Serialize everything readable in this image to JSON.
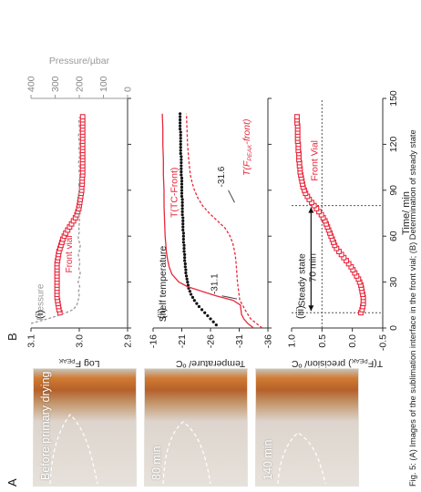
{
  "panels": {
    "a_label": "A",
    "b_label": "B",
    "photo_captions": [
      "Before primary drying",
      "80 min",
      "140 min"
    ],
    "caption": "Fig. 5: (A) Images of the sublimation interface in the front vial; (B) Determination of steady state"
  },
  "chart_data": [
    {
      "id": "i",
      "type": "line",
      "panel": "(i)",
      "xlim": [
        0,
        150
      ],
      "ylabel": "Log F",
      "ylabel_sub": "PEAK",
      "ylim": [
        2.9,
        3.1
      ],
      "yticks": [
        "3.1",
        "3.0",
        "2.9"
      ],
      "y2label": "Pressure/µbar",
      "y2lim": [
        0,
        400
      ],
      "y2ticks": [
        "0",
        "100",
        "200",
        "300",
        "400"
      ],
      "annotations": [
        "Pressure",
        "Front vial"
      ],
      "series": [
        {
          "name": "Front vial",
          "color": "#e8283c",
          "marker": "square",
          "x": [
            10,
            12,
            14,
            16,
            18,
            20,
            22,
            24,
            26,
            28,
            30,
            32,
            34,
            36,
            38,
            40,
            42,
            44,
            46,
            48,
            50,
            52,
            54,
            56,
            58,
            60,
            62,
            64,
            66,
            68,
            70,
            72,
            74,
            76,
            78,
            80,
            82,
            84,
            86,
            88,
            90,
            92,
            94,
            96,
            98,
            100,
            102,
            104,
            106,
            108,
            110,
            112,
            114,
            116,
            118,
            120,
            122,
            124,
            126,
            128,
            130,
            132,
            134,
            136,
            138
          ],
          "y": [
            3.04,
            3.042,
            3.043,
            3.044,
            3.045,
            3.046,
            3.046,
            3.046,
            3.046,
            3.046,
            3.046,
            3.046,
            3.046,
            3.046,
            3.046,
            3.046,
            3.046,
            3.045,
            3.044,
            3.043,
            3.042,
            3.04,
            3.038,
            3.036,
            3.034,
            3.031,
            3.028,
            3.024,
            3.02,
            3.016,
            3.012,
            3.008,
            3.005,
            3.003,
            3.001,
            3.0,
            2.999,
            2.998,
            2.997,
            2.996,
            2.995,
            2.995,
            2.994,
            2.994,
            2.994,
            2.993,
            2.993,
            2.993,
            2.993,
            2.993,
            2.993,
            2.993,
            2.993,
            2.993,
            2.993,
            2.993,
            2.993,
            2.993,
            2.993,
            2.993,
            2.993,
            2.993,
            2.993,
            2.993,
            2.993
          ]
        },
        {
          "name": "Pressure",
          "axis": "y2",
          "color": "#9a9a9a",
          "style": "dashed",
          "x": [
            3,
            6,
            9,
            12,
            15,
            18,
            21,
            24,
            27,
            30,
            33,
            36,
            39,
            42,
            45,
            48,
            51,
            54,
            57,
            60,
            63,
            66,
            69,
            72,
            75,
            78,
            81,
            84,
            87,
            90,
            93,
            96,
            99,
            102,
            105,
            108,
            111,
            114,
            117,
            120,
            123,
            126,
            129,
            132,
            135,
            138
          ],
          "y": [
            400,
            330,
            270,
            225,
            210,
            205,
            200,
            203,
            198,
            205,
            200,
            196,
            202,
            198,
            200,
            204,
            199,
            196,
            202,
            205,
            199,
            203,
            198,
            200,
            204,
            197,
            201,
            199,
            203,
            198,
            202,
            200,
            197,
            201,
            199,
            203,
            200,
            198,
            202,
            199,
            201,
            203,
            198,
            200,
            202,
            199
          ]
        }
      ]
    },
    {
      "id": "ii",
      "type": "line",
      "panel": "(ii)",
      "xlim": [
        0,
        150
      ],
      "ylabel": "Temperature/ ºC",
      "ylim": [
        -36,
        -16
      ],
      "yticks": [
        "-16",
        "-21",
        "-26",
        "-31",
        "-36"
      ],
      "annotations": [
        "Shelf temperature",
        "T(TC-Front)",
        "-31.6",
        "T(F",
        "PEAK",
        "-front)",
        "-31.1"
      ],
      "series": [
        {
          "name": "Shelf temperature",
          "color": "#111111",
          "marker": "dot",
          "x": [
            2,
            4,
            6,
            8,
            10,
            12,
            14,
            16,
            18,
            20,
            22,
            24,
            26,
            28,
            30,
            32,
            34,
            36,
            38,
            40,
            42,
            44,
            46,
            48,
            50,
            52,
            54,
            56,
            58,
            60,
            62,
            64,
            66,
            68,
            70,
            72,
            74,
            76,
            78,
            80,
            82,
            84,
            86,
            88,
            90,
            92,
            94,
            96,
            98,
            100,
            102,
            104,
            106,
            108,
            110,
            112,
            114,
            116,
            118,
            120,
            122,
            124,
            126,
            128,
            130,
            132,
            134,
            136,
            138,
            140
          ],
          "y": [
            -27,
            -26.5,
            -26,
            -25.5,
            -25,
            -24.5,
            -24,
            -23.6,
            -23.2,
            -22.9,
            -22.6,
            -22.4,
            -22.2,
            -22.1,
            -22,
            -21.9,
            -21.8,
            -21.7,
            -21.7,
            -21.6,
            -21.6,
            -21.5,
            -21.5,
            -21.5,
            -21.4,
            -21.4,
            -21.4,
            -21.3,
            -21.3,
            -21.3,
            -21.3,
            -21.2,
            -21.2,
            -21.2,
            -21.2,
            -21.2,
            -21.1,
            -21.1,
            -21.1,
            -21.1,
            -21.1,
            -21.1,
            -21,
            -21,
            -21,
            -21,
            -21,
            -21,
            -21,
            -20.9,
            -20.9,
            -20.9,
            -20.9,
            -20.9,
            -20.9,
            -20.9,
            -20.8,
            -20.8,
            -20.8,
            -20.8,
            -20.8,
            -20.8,
            -20.8,
            -20.8,
            -20.7,
            -20.7,
            -20.7,
            -20.7,
            -20.7,
            -20.7
          ]
        },
        {
          "name": "T(TC-Front)",
          "color": "#e8283c",
          "x": [
            0,
            3,
            6,
            9,
            12,
            15,
            18,
            21,
            24,
            27,
            30,
            35,
            40,
            45,
            50,
            55,
            60,
            70,
            80,
            90,
            100,
            110,
            120,
            130,
            140
          ],
          "y": [
            -33.5,
            -32.5,
            -31.8,
            -31.4,
            -31.3,
            -31.2,
            -30,
            -27,
            -24.5,
            -22,
            -20.5,
            -19.3,
            -18.8,
            -18.5,
            -18.3,
            -18.2,
            -18.1,
            -18,
            -17.9,
            -17.9,
            -17.8,
            -17.8,
            -17.7,
            -17.7,
            -17.6
          ]
        },
        {
          "name": "T(F-PEAK-front)",
          "color": "#e8283c",
          "style": "dashed",
          "x": [
            0,
            3,
            6,
            9,
            12,
            15,
            18,
            21,
            24,
            27,
            30,
            35,
            40,
            45,
            50,
            55,
            60,
            65,
            70,
            75,
            80,
            85,
            90,
            95,
            100,
            110,
            120,
            130,
            140
          ],
          "y": [
            -35,
            -34,
            -33,
            -32.5,
            -32,
            -31.6,
            -31.1,
            -31,
            -30.9,
            -30.8,
            -30.7,
            -30.6,
            -30.5,
            -30.4,
            -30.2,
            -29.9,
            -29.4,
            -28.6,
            -27.2,
            -25.8,
            -24.6,
            -23.8,
            -23.2,
            -22.8,
            -22.5,
            -22.2,
            -22,
            -21.9,
            -21.8
          ]
        }
      ]
    },
    {
      "id": "iii",
      "type": "line",
      "panel": "(iii)",
      "xlabel": "Time/ min",
      "xlim": [
        0,
        150
      ],
      "xticks": [
        "0",
        "30",
        "60",
        "90",
        "120",
        "150"
      ],
      "ylabel": "T(F",
      "ylabel_sub": "PEAK",
      "ylabel_tail": ") precision/ ºC",
      "ylim": [
        -0.5,
        1.0
      ],
      "yticks": [
        "1.0",
        "0.5",
        "0.0",
        "-0.5"
      ],
      "annotations": [
        "Steady state",
        "70 min",
        "Front Vial"
      ],
      "reference": {
        "y": 0.5,
        "x_start": 10,
        "x_end": 80
      },
      "series": [
        {
          "name": "Front Vial",
          "color": "#e8283c",
          "marker": "square",
          "x": [
            10,
            12,
            14,
            16,
            18,
            20,
            22,
            24,
            26,
            28,
            30,
            32,
            34,
            36,
            38,
            40,
            42,
            44,
            46,
            48,
            50,
            52,
            54,
            56,
            58,
            60,
            62,
            64,
            66,
            68,
            70,
            72,
            74,
            76,
            78,
            80,
            82,
            84,
            86,
            88,
            90,
            92,
            94,
            96,
            98,
            100,
            102,
            104,
            106,
            108,
            110,
            112,
            114,
            116,
            118,
            120,
            122,
            124,
            126,
            128,
            130,
            132,
            134,
            136,
            138
          ],
          "y": [
            -0.14,
            -0.16,
            -0.17,
            -0.18,
            -0.18,
            -0.18,
            -0.17,
            -0.16,
            -0.15,
            -0.14,
            -0.12,
            -0.1,
            -0.07,
            -0.04,
            -0.01,
            0.02,
            0.06,
            0.1,
            0.14,
            0.18,
            0.22,
            0.26,
            0.29,
            0.31,
            0.33,
            0.35,
            0.37,
            0.39,
            0.41,
            0.43,
            0.45,
            0.48,
            0.51,
            0.55,
            0.59,
            0.63,
            0.67,
            0.71,
            0.74,
            0.77,
            0.79,
            0.81,
            0.82,
            0.83,
            0.84,
            0.85,
            0.86,
            0.86,
            0.87,
            0.87,
            0.88,
            0.88,
            0.88,
            0.89,
            0.89,
            0.89,
            0.9,
            0.9,
            0.9,
            0.9,
            0.9,
            0.9,
            0.91,
            0.91,
            0.91
          ]
        }
      ]
    }
  ]
}
